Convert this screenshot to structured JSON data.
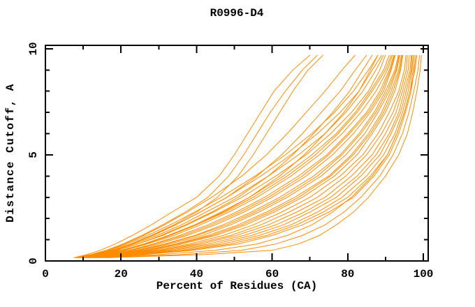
{
  "figure": {
    "title": "R0996-D4",
    "xlabel": "Percent of Residues (CA)",
    "ylabel": "Distance Cutoff, A"
  },
  "chart_data": {
    "type": "line",
    "title": "R0996-D4",
    "xlabel": "Percent of Residues (CA)",
    "ylabel": "Distance Cutoff, A",
    "grid": false,
    "legend_position": "none",
    "line_color": "#ff8c00",
    "axis_color": "#000000",
    "background_color": "#ffffff",
    "xlim": [
      0,
      101.3
    ],
    "ylim": [
      0,
      10.16
    ],
    "x_major_ticks": [
      0,
      20,
      40,
      60,
      80,
      100
    ],
    "x_minor_ticks": [
      10,
      30,
      50,
      70,
      90
    ],
    "x_tick_labels": [
      "0",
      "20",
      "40",
      "60",
      "80",
      "100"
    ],
    "y_major_ticks": [
      0,
      5,
      10
    ],
    "y_minor_ticks": [
      1,
      2,
      3,
      4,
      6,
      7,
      8,
      9
    ],
    "y_tick_labels": [
      "0",
      "5",
      "10"
    ],
    "y_samples": [
      0.15,
      0.3,
      0.5,
      0.8,
      1.2,
      1.7,
      2.3,
      3,
      4,
      5,
      6,
      7,
      8,
      9,
      9.7
    ],
    "series": [
      [
        7.5,
        11,
        14.5,
        18.5,
        23,
        28,
        33.5,
        40,
        46,
        50,
        53.5,
        57,
        60.5,
        65.5,
        70
      ],
      [
        8,
        12,
        16,
        20.5,
        25.5,
        31,
        37,
        43,
        48.5,
        52.5,
        56,
        59.5,
        63.5,
        68,
        72
      ],
      [
        8.5,
        13,
        17.5,
        22.5,
        28,
        34,
        40,
        45.5,
        51,
        55,
        58.5,
        62,
        65.5,
        69.5,
        73.5
      ],
      [
        8,
        12.5,
        16.5,
        21,
        26,
        31.5,
        37.5,
        44,
        52,
        58.5,
        64,
        69,
        74,
        78.5,
        82
      ],
      [
        8.5,
        13.5,
        18,
        23,
        28.5,
        34.5,
        41,
        48,
        56,
        62.5,
        68,
        73,
        78,
        82,
        85
      ],
      [
        9,
        14,
        19,
        24.5,
        30.5,
        37,
        44,
        51,
        59,
        65.5,
        71,
        76,
        80.5,
        84,
        86.5
      ],
      [
        9,
        14.5,
        20,
        26,
        32.5,
        39.5,
        47,
        54,
        62,
        68.5,
        74,
        79,
        83,
        86,
        88
      ],
      [
        8.5,
        13,
        17,
        21.5,
        27,
        33,
        39.5,
        46.5,
        55.5,
        63.5,
        70.5,
        76.5,
        81.5,
        85.5,
        88
      ],
      [
        8.5,
        13.5,
        17.5,
        22.5,
        28,
        34.5,
        41,
        48,
        57,
        65,
        72,
        78,
        83,
        86.5,
        89
      ],
      [
        9,
        14,
        18.5,
        23.5,
        29.5,
        36,
        42.5,
        50,
        59,
        67,
        74,
        79.5,
        84,
        87.5,
        89.5
      ],
      [
        9,
        14.5,
        19,
        24.5,
        31,
        37.5,
        44.5,
        52,
        61,
        69,
        75.5,
        81,
        85.5,
        88.5,
        90
      ],
      [
        9.5,
        15,
        20,
        26,
        32.5,
        39.5,
        46.5,
        54,
        63,
        70.5,
        77,
        82,
        86,
        89.5,
        91
      ],
      [
        9.5,
        15.5,
        21,
        27,
        34,
        41,
        48.5,
        56,
        65,
        72.5,
        78.5,
        83.5,
        87.5,
        90.5,
        91.8
      ],
      [
        10,
        16,
        22,
        28.5,
        35.5,
        43,
        50.5,
        58,
        67,
        74.5,
        80,
        85,
        88.5,
        91,
        92.2
      ],
      [
        10,
        16.5,
        23,
        30,
        37.5,
        45,
        52.5,
        60,
        69,
        76,
        81.5,
        86,
        89.5,
        91.5,
        92.6
      ],
      [
        9.5,
        15.5,
        20.5,
        26.5,
        33,
        40,
        47.5,
        55,
        64,
        71.5,
        77.5,
        82.5,
        86.5,
        90,
        91.5
      ],
      [
        10,
        16.5,
        22.5,
        29,
        36.5,
        44,
        51.5,
        59,
        68,
        75,
        80.5,
        85.5,
        89,
        91.3,
        92.4
      ],
      [
        10.5,
        17,
        24,
        31.5,
        39.5,
        47,
        54.5,
        62,
        71,
        78,
        83,
        87,
        90,
        92.5,
        93.4
      ],
      [
        10.5,
        17.5,
        25,
        33,
        41.5,
        49,
        56.5,
        64,
        73,
        79.5,
        84.5,
        88,
        91,
        93,
        93.8
      ],
      [
        11,
        18,
        26,
        34.5,
        43,
        51,
        58.5,
        66,
        75,
        81,
        85.5,
        89,
        91.5,
        93.5,
        94.2
      ],
      [
        11,
        19,
        27.5,
        36,
        45,
        53,
        60.5,
        68,
        76.5,
        82.5,
        86.5,
        90,
        92.5,
        94,
        94.6
      ],
      [
        10.5,
        17.5,
        24.5,
        32,
        40,
        48,
        55.5,
        63,
        72,
        78.5,
        83.5,
        87.5,
        90.5,
        92.8,
        93.6
      ],
      [
        11,
        18.5,
        26.5,
        35,
        44,
        52,
        59.5,
        67,
        75.5,
        81.5,
        86,
        89.5,
        92,
        93.8,
        94.4
      ],
      [
        11.5,
        19.5,
        28.5,
        38,
        47,
        55,
        62.5,
        70,
        78,
        84,
        88,
        91,
        93.5,
        95,
        95.4
      ],
      [
        11.5,
        20,
        30,
        39.5,
        49,
        57,
        64.5,
        72,
        79.5,
        85,
        89,
        92,
        94,
        95.5,
        95.8
      ],
      [
        12,
        21,
        31,
        41,
        50.5,
        59,
        66.5,
        74,
        81,
        86.5,
        90,
        92.8,
        94.5,
        96,
        96.3
      ],
      [
        12,
        22,
        32.5,
        43,
        52.5,
        61,
        68.5,
        75.5,
        82.5,
        87.5,
        91,
        93.5,
        95,
        96.5,
        96.8
      ],
      [
        12.5,
        23,
        34,
        45,
        54.5,
        63,
        70,
        77,
        83.5,
        88.5,
        91.5,
        94,
        95.5,
        96.8,
        97
      ],
      [
        13,
        24,
        36,
        47,
        56.5,
        65,
        72,
        78.5,
        85,
        89.5,
        92.5,
        94.5,
        96,
        97,
        97.3
      ],
      [
        13,
        25,
        37.5,
        49,
        58.5,
        66.5,
        73.5,
        80,
        86,
        90.5,
        93,
        95,
        96.5,
        97.3,
        97.6
      ],
      [
        13.5,
        26,
        39,
        51,
        60,
        68,
        75,
        81.5,
        87,
        91,
        93.5,
        95.3,
        96.8,
        97.6,
        98
      ],
      [
        14,
        30,
        45,
        56,
        64,
        70.5,
        76,
        81,
        86.5,
        90.5,
        93,
        95,
        96.5,
        97.8,
        98.3
      ],
      [
        15,
        36,
        52,
        61,
        68,
        74,
        79,
        83.5,
        88.5,
        92,
        94.5,
        96.2,
        97.5,
        98.6,
        99
      ],
      [
        16,
        42,
        60,
        67,
        72.5,
        77,
        81.5,
        85.5,
        90,
        93.5,
        95.8,
        97.2,
        98.3,
        99.2,
        99.5
      ]
    ]
  }
}
